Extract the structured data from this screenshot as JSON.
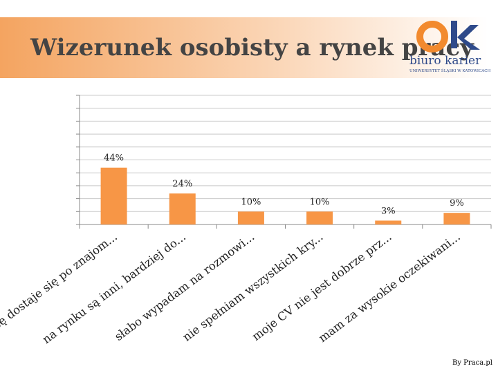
{
  "header": {
    "title": "Wizerunek osobisty a rynek pracy",
    "logo": {
      "mark": "ok",
      "name": "biuro karier",
      "org": "UNIWERSYTET ŚLĄSKI W KATOWICACH"
    }
  },
  "chart_data": {
    "type": "bar",
    "categories": [
      "pracę dostaje się po znajom...",
      "na rynku są inni, bardziej do...",
      "słabo wypadam na rozmowi...",
      "nie spełniam wszystkich kry...",
      "moje CV nie jest dobrze prz...",
      "mam za wysokie oczekiwani..."
    ],
    "values": [
      44,
      24,
      10,
      10,
      3,
      9
    ],
    "value_labels": [
      "44%",
      "24%",
      "10%",
      "10%",
      "3%",
      "9%"
    ],
    "color": "#f79646",
    "ylim": [
      0,
      100
    ],
    "yticks": [
      0,
      10,
      20,
      30,
      40,
      50,
      60,
      70,
      80,
      90,
      100
    ],
    "grid": true
  },
  "footer": {
    "source": "By Praca.pl"
  }
}
